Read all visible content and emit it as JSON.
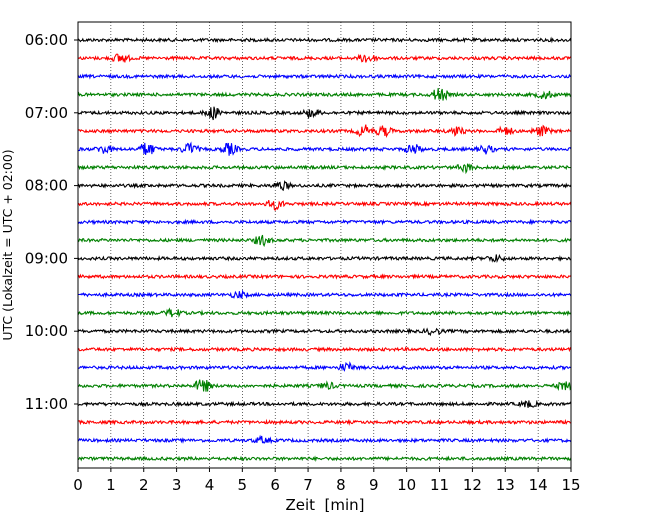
{
  "chart_data": {
    "type": "line",
    "title": "",
    "xlabel": "Zeit  [min]",
    "ylabel": "UTC (Lokalzeit = UTC + 02:00)",
    "xlim": [
      0,
      15
    ],
    "x_ticks": [
      "0",
      "1",
      "2",
      "3",
      "4",
      "5",
      "6",
      "7",
      "8",
      "9",
      "10",
      "11",
      "12",
      "13",
      "14",
      "15"
    ],
    "y_tick_labels": [
      "06:00",
      "07:00",
      "08:00",
      "09:00",
      "10:00",
      "11:00"
    ],
    "grid": "vertical dotted at each minute",
    "trace_interval_minutes": 15,
    "trace_count": 24,
    "first_trace": "06:00",
    "trace_colors": [
      "#000000",
      "#ff0000",
      "#0000ff",
      "#008000"
    ],
    "background": "#ffffff",
    "bursts": [
      {
        "trace": 1,
        "at_min": 1.3,
        "amp": 5
      },
      {
        "trace": 1,
        "at_min": 8.8,
        "amp": 5
      },
      {
        "trace": 3,
        "at_min": 11.0,
        "amp": 7
      },
      {
        "trace": 3,
        "at_min": 14.2,
        "amp": 4
      },
      {
        "trace": 4,
        "at_min": 4.1,
        "amp": 6
      },
      {
        "trace": 4,
        "at_min": 7.1,
        "amp": 4
      },
      {
        "trace": 5,
        "at_min": 8.7,
        "amp": 6
      },
      {
        "trace": 5,
        "at_min": 9.3,
        "amp": 5
      },
      {
        "trace": 5,
        "at_min": 11.5,
        "amp": 4
      },
      {
        "trace": 5,
        "at_min": 13.0,
        "amp": 4
      },
      {
        "trace": 5,
        "at_min": 14.1,
        "amp": 5
      },
      {
        "trace": 6,
        "at_min": 0.8,
        "amp": 4
      },
      {
        "trace": 6,
        "at_min": 2.1,
        "amp": 7
      },
      {
        "trace": 6,
        "at_min": 3.4,
        "amp": 6
      },
      {
        "trace": 6,
        "at_min": 4.6,
        "amp": 6
      },
      {
        "trace": 6,
        "at_min": 10.2,
        "amp": 5
      },
      {
        "trace": 6,
        "at_min": 12.4,
        "amp": 4
      },
      {
        "trace": 7,
        "at_min": 11.8,
        "amp": 4
      },
      {
        "trace": 8,
        "at_min": 6.2,
        "amp": 4
      },
      {
        "trace": 9,
        "at_min": 6.0,
        "amp": 5
      },
      {
        "trace": 11,
        "at_min": 5.6,
        "amp": 5
      },
      {
        "trace": 12,
        "at_min": 12.7,
        "amp": 3
      },
      {
        "trace": 14,
        "at_min": 4.9,
        "amp": 3
      },
      {
        "trace": 15,
        "at_min": 2.9,
        "amp": 4
      },
      {
        "trace": 16,
        "at_min": 10.8,
        "amp": 3
      },
      {
        "trace": 18,
        "at_min": 8.2,
        "amp": 4
      },
      {
        "trace": 19,
        "at_min": 3.8,
        "amp": 7
      },
      {
        "trace": 19,
        "at_min": 7.6,
        "amp": 3
      },
      {
        "trace": 19,
        "at_min": 14.8,
        "amp": 4
      },
      {
        "trace": 20,
        "at_min": 13.7,
        "amp": 3
      },
      {
        "trace": 22,
        "at_min": 5.6,
        "amp": 3
      }
    ]
  }
}
